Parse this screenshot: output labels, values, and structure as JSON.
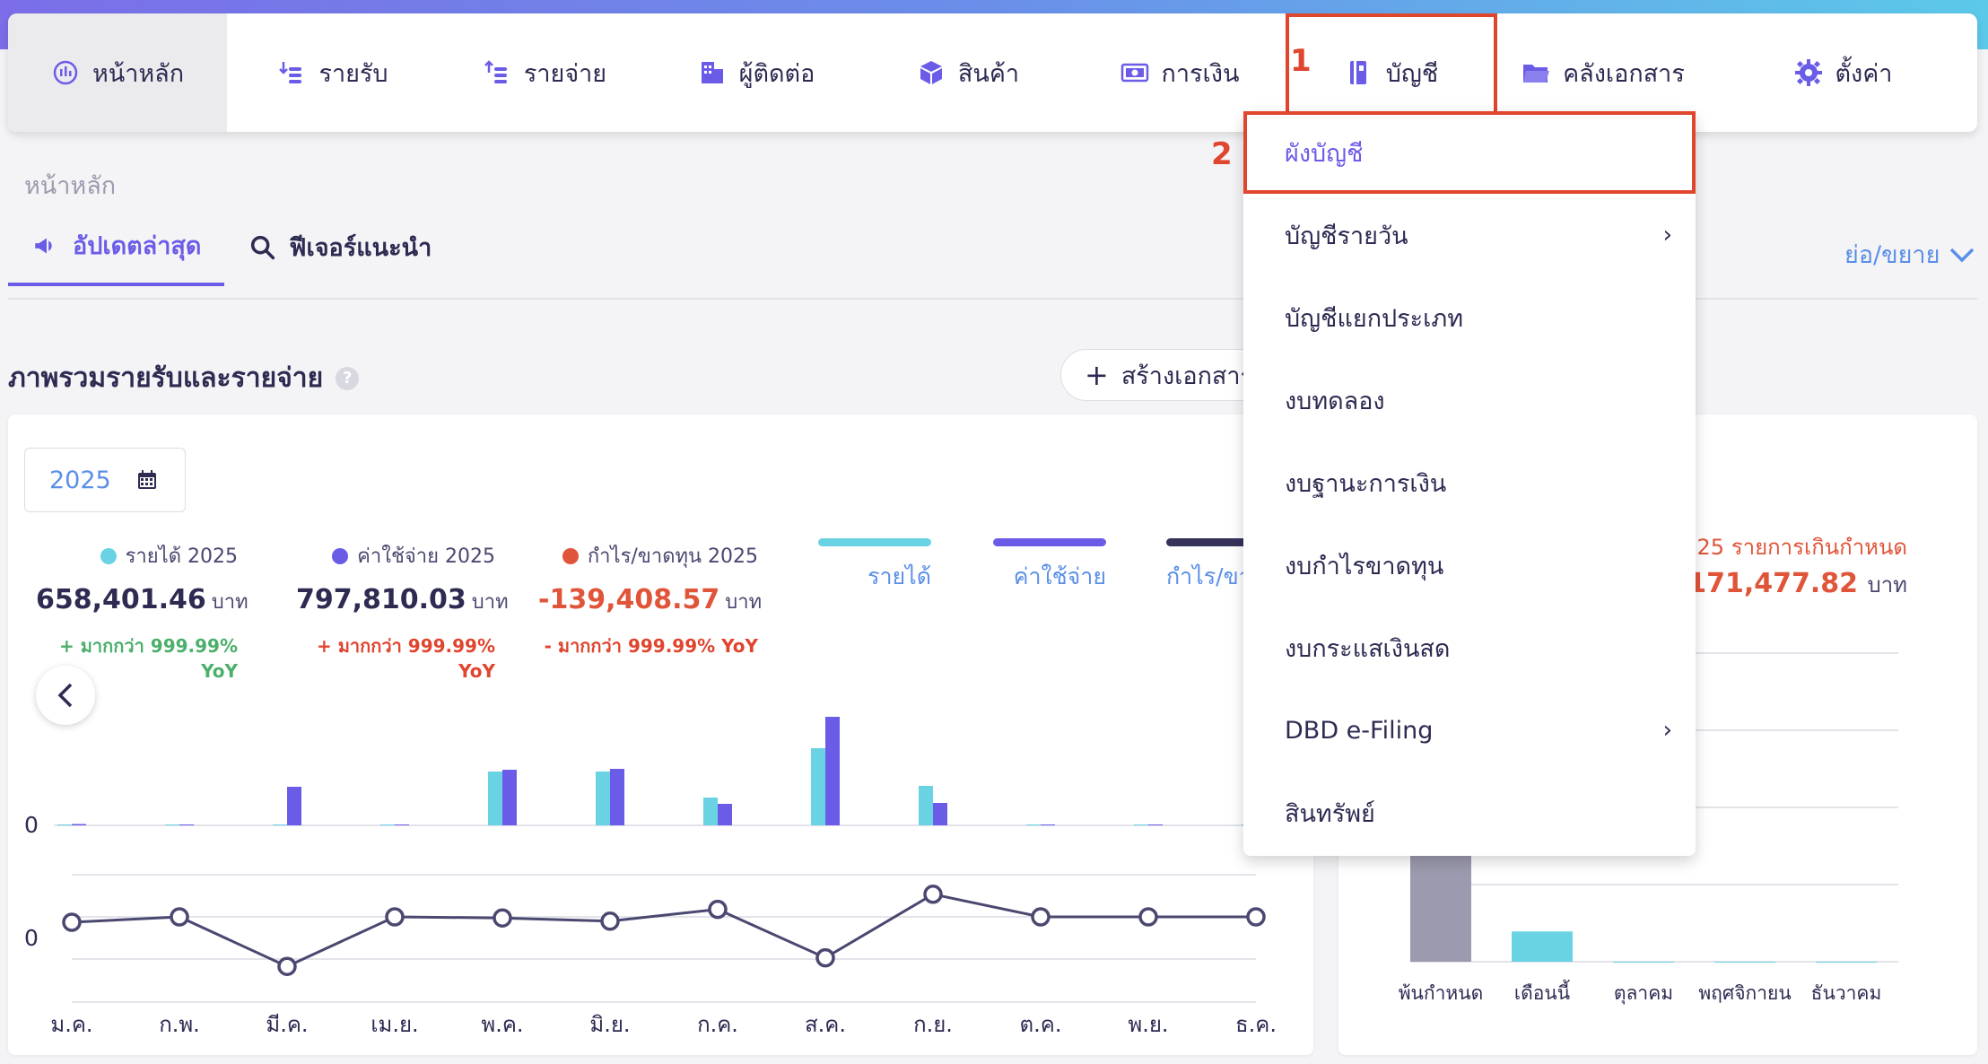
{
  "nav": {
    "items": [
      {
        "label": "หน้าหลัก",
        "icon": "dashboard-icon"
      },
      {
        "label": "รายรับ",
        "icon": "income-icon"
      },
      {
        "label": "รายจ่าย",
        "icon": "expense-icon"
      },
      {
        "label": "ผู้ติดต่อ",
        "icon": "contacts-icon"
      },
      {
        "label": "สินค้า",
        "icon": "box-icon"
      },
      {
        "label": "การเงิน",
        "icon": "money-icon"
      },
      {
        "label": "บัญชี",
        "icon": "ledger-icon"
      },
      {
        "label": "คลังเอกสาร",
        "icon": "folder-icon"
      },
      {
        "label": "ตั้งค่า",
        "icon": "gear-icon"
      }
    ]
  },
  "annotations": {
    "step1": "1",
    "step2": "2"
  },
  "breadcrumb": "หน้าหลัก",
  "tabs": [
    {
      "label": "อัปเดตล่าสุด",
      "icon": "megaphone-icon"
    },
    {
      "label": "ฟีเจอร์แนะนำ",
      "icon": "search-icon"
    }
  ],
  "expand_label": "ย่อ/ขยาย",
  "section": {
    "title": "ภาพรวมรายรับและรายจ่าย",
    "help": "?",
    "create_button": "สร้างเอกสาร"
  },
  "year": "2025",
  "stats": {
    "income": {
      "label": "รายได้ 2025",
      "value": "658,401.46",
      "unit": "บาท",
      "yoy": "+ มากกว่า 999.99% YoY",
      "color": "#6ad3e3",
      "value_color": "#2d2b52",
      "yoy_color": "#4caf6a"
    },
    "expense": {
      "label": "ค่าใช้จ่าย 2025",
      "value": "797,810.03",
      "unit": "บาท",
      "yoy": "+ มากกว่า 999.99% YoY",
      "color": "#6b5ce7",
      "value_color": "#2d2b52",
      "yoy_color": "#e0452e"
    },
    "profit": {
      "label": "กำไร/ขาดทุน 2025",
      "value": "-139,408.57",
      "unit": "บาท",
      "yoy": "- มากกว่า 999.99% YoY",
      "color": "#e0553a",
      "value_color": "#e0553a",
      "yoy_color": "#e0452e"
    }
  },
  "legend": [
    {
      "label": "รายได้",
      "color": "#6ad3e3"
    },
    {
      "label": "ค่าใช้จ่าย",
      "color": "#6b5ce7"
    },
    {
      "label": "กำไร/ขาด",
      "color": "#35335a"
    }
  ],
  "right_card": {
    "overdue_label": "25 รายการเกินกำหนด",
    "overdue_value": "171,477.82",
    "unit": "บาท",
    "categories": [
      "พ้นกำหนด",
      "เดือนนี้",
      "ตุลาคม",
      "พฤศจิกายน",
      "ธันวาคม"
    ],
    "values": [
      5,
      1.3,
      0,
      0,
      0
    ],
    "colors": [
      "#9b9aae",
      "#6ad3e3",
      "#6ad3e3",
      "#6ad3e3",
      "#6ad3e3"
    ]
  },
  "dropdown": {
    "items": [
      {
        "label": "ผังบัญชี",
        "submenu": false
      },
      {
        "label": "บัญชีรายวัน",
        "submenu": true
      },
      {
        "label": "บัญชีแยกประเภท",
        "submenu": false
      },
      {
        "label": "งบทดลอง",
        "submenu": false
      },
      {
        "label": "งบฐานะการเงิน",
        "submenu": false
      },
      {
        "label": "งบกำไรขาดทุน",
        "submenu": false
      },
      {
        "label": "งบกระแสเงินสด",
        "submenu": false
      },
      {
        "label": "DBD e-Filing",
        "submenu": true
      },
      {
        "label": "สินทรัพย์",
        "submenu": false
      }
    ],
    "chevron": "›"
  },
  "chart_data": [
    {
      "type": "bar",
      "categories": [
        "ม.ค.",
        "ก.พ.",
        "มี.ค.",
        "เม.ย.",
        "พ.ค.",
        "มิ.ย.",
        "ก.ค.",
        "ส.ค.",
        "ก.ย.",
        "ต.ค.",
        "พ.ย.",
        "ธ.ค."
      ],
      "series": [
        {
          "name": "รายได้",
          "values": [
            1,
            1,
            1,
            1,
            60,
            60,
            31,
            86,
            44,
            1,
            1,
            1
          ]
        },
        {
          "name": "ค่าใช้จ่าย",
          "values": [
            1.5,
            1,
            43,
            1,
            62,
            63,
            24,
            121,
            25,
            1,
            1,
            0
          ]
        }
      ],
      "zero_label": "0"
    },
    {
      "type": "line",
      "categories": [
        "ม.ค.",
        "ก.พ.",
        "มี.ค.",
        "เม.ย.",
        "พ.ค.",
        "มิ.ย.",
        "ก.ค.",
        "ส.ค.",
        "ก.ย.",
        "ต.ค.",
        "พ.ย.",
        "ธ.ค."
      ],
      "series": [
        {
          "name": "กำไร/ขาด",
          "values": [
            -0.5,
            0,
            -4.6,
            0,
            -0.1,
            -0.4,
            0.7,
            -3.8,
            2.1,
            0,
            0,
            0
          ]
        }
      ],
      "zero_label": "0"
    }
  ]
}
